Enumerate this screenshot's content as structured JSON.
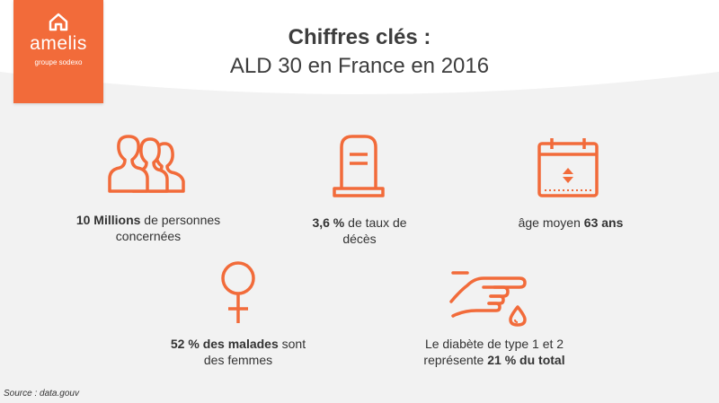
{
  "logo": {
    "name": "amelis",
    "tagline": "groupe sodexo",
    "color": "#f26b3a"
  },
  "title": {
    "line1": "Chiffres clés :",
    "line2": "ALD 30 en France en 2016"
  },
  "accent_color": "#f26b3a",
  "stats": [
    {
      "icon": "people-group-icon",
      "bold": "10 Millions",
      "text": " de personnes",
      "line2": "concernées"
    },
    {
      "icon": "tombstone-icon",
      "bold": "3,6 %",
      "text": " de taux de",
      "line2": "décès"
    },
    {
      "icon": "calendar-icon",
      "text": "âge moyen ",
      "bold": "63 ans"
    },
    {
      "icon": "female-symbol-icon",
      "bold": "52 % des malades",
      "text": " sont",
      "line2": "des femmes"
    },
    {
      "icon": "finger-blood-drop-icon",
      "line1": "Le diabète de type 1 et 2",
      "text": "représente ",
      "bold": "21 % du total"
    }
  ],
  "source": "Source : data.gouv"
}
